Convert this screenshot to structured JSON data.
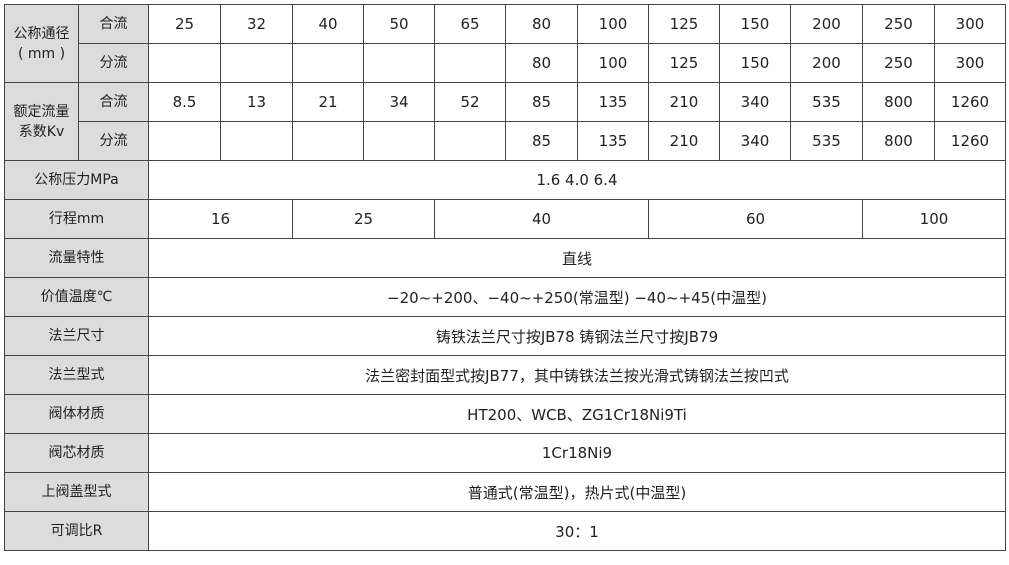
{
  "nominal_diameter": {
    "label_line1": "公称通径",
    "label_line2": "( mm )",
    "merge_label": "合流",
    "merge_values": [
      "25",
      "32",
      "40",
      "50",
      "65",
      "80",
      "100",
      "125",
      "150",
      "200",
      "250",
      "300"
    ],
    "diverge_label": "分流",
    "diverge_values": [
      "",
      "",
      "",
      "",
      "",
      "80",
      "100",
      "125",
      "150",
      "200",
      "250",
      "300"
    ]
  },
  "flow_coefficient": {
    "label_line1": "额定流量",
    "label_line2": "系数Kv",
    "merge_label": "合流",
    "merge_values": [
      "8.5",
      "13",
      "21",
      "34",
      "52",
      "85",
      "135",
      "210",
      "340",
      "535",
      "800",
      "1260"
    ],
    "diverge_label": "分流",
    "diverge_values": [
      "",
      "",
      "",
      "",
      "",
      "85",
      "135",
      "210",
      "340",
      "535",
      "800",
      "1260"
    ]
  },
  "pressure": {
    "label": "公称压力MPa",
    "value": "1.6  4.0  6.4"
  },
  "stroke": {
    "label": "行程mm",
    "values": [
      "16",
      "25",
      "40",
      "60",
      "100"
    ]
  },
  "rows": [
    {
      "label": "流量特性",
      "value": "直线"
    },
    {
      "label": "价值温度℃",
      "value": "−20~+200、−40~+250(常温型)  −40~+45(中温型)"
    },
    {
      "label": "法兰尺寸",
      "value": "铸铁法兰尺寸按JB78  铸钢法兰尺寸按JB79"
    },
    {
      "label": "法兰型式",
      "value": "法兰密封面型式按JB77，其中铸铁法兰按光滑式铸钢法兰按凹式"
    },
    {
      "label": "阀体材质",
      "value": "HT200、WCB、ZG1Cr18Ni9Ti"
    },
    {
      "label": "阀芯材质",
      "value": "1Cr18Ni9"
    },
    {
      "label": "上阀盖型式",
      "value": "普通式(常温型)，热片式(中温型)"
    },
    {
      "label": "可调比R",
      "value": "30：1"
    }
  ]
}
